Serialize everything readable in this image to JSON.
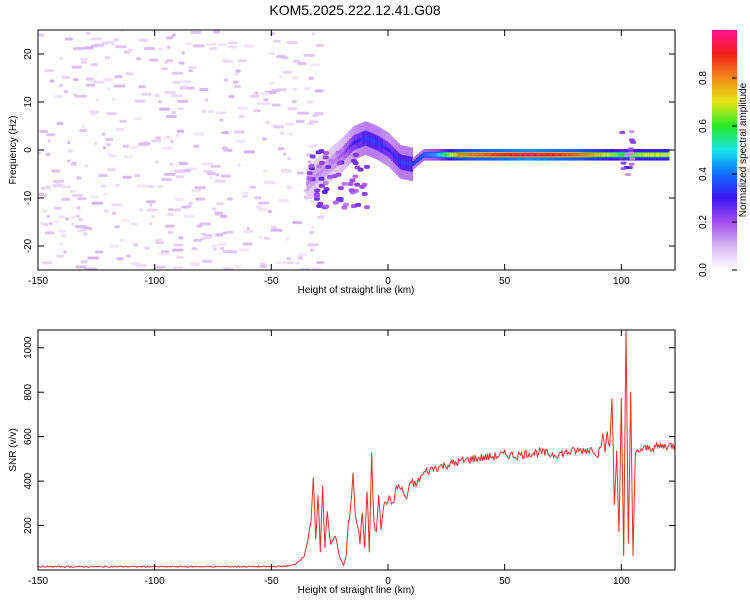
{
  "chart_data": [
    {
      "type": "heatmap",
      "title": "KOM5.2025.222.12.41.G08",
      "xlabel": "Height of straight line (km)",
      "ylabel": "Frequency (Hz)",
      "xlim": [
        -150,
        123
      ],
      "ylim": [
        -25,
        25
      ],
      "xticks": [
        -150,
        -100,
        -50,
        0,
        50,
        100
      ],
      "yticks": [
        -20,
        -10,
        0,
        10,
        20
      ],
      "colorbar": {
        "label": "Normalized spectral amplitude",
        "range": [
          0,
          1
        ],
        "ticks": [
          0.0,
          0.2,
          0.4,
          0.6,
          0.8
        ],
        "stops": [
          "#ffffff",
          "#d7b7f5",
          "#a24ef0",
          "#3a13f2",
          "#0e6cff",
          "#19e6e6",
          "#27e827",
          "#e6e619",
          "#f58a17",
          "#f01d1d",
          "#ff1493"
        ]
      },
      "ridge": {
        "x": [
          -35,
          -30,
          -25,
          -20,
          -15,
          -10,
          -5,
          0,
          5,
          10,
          15,
          20,
          30,
          40,
          50,
          60,
          70,
          80,
          90,
          100,
          110,
          120
        ],
        "freq": [
          -7,
          -5,
          -3,
          -1,
          1.5,
          2.5,
          1.5,
          0,
          -2.5,
          -3,
          -1,
          -1,
          -1,
          -1,
          -1,
          -1,
          -1,
          -1,
          -1,
          -1,
          -1,
          -1
        ],
        "amplitude": [
          0.15,
          0.15,
          0.15,
          0.2,
          0.3,
          0.35,
          0.35,
          0.3,
          0.35,
          0.35,
          0.4,
          0.45,
          0.8,
          0.85,
          0.9,
          0.95,
          0.9,
          0.85,
          0.75,
          0.6,
          0.7,
          0.7
        ]
      }
    },
    {
      "type": "line",
      "xlabel": "Height of straight line (km)",
      "ylabel": "SNR (v/v)",
      "xlim": [
        -150,
        123
      ],
      "ylim": [
        0,
        1080
      ],
      "xticks": [
        -150,
        -100,
        -50,
        0,
        50,
        100
      ],
      "yticks": [
        200,
        400,
        600,
        800,
        1000
      ],
      "color": "#e8302c",
      "series": [
        {
          "name": "SNR",
          "x": [
            -150,
            -100,
            -50,
            -42,
            -40,
            -36,
            -33,
            -32,
            -31,
            -30,
            -29,
            -28,
            -27,
            -26,
            -25,
            -24,
            -23,
            -22,
            -21,
            -20,
            -19,
            -18,
            -17,
            -16,
            -15,
            -14,
            -13,
            -12,
            -11,
            -10,
            -9,
            -8,
            -7,
            -6,
            -5,
            -4,
            -3,
            -2,
            -1,
            0,
            2,
            4,
            6,
            8,
            10,
            12,
            14,
            16,
            18,
            20,
            24,
            28,
            32,
            36,
            40,
            45,
            50,
            55,
            60,
            65,
            70,
            75,
            80,
            85,
            88,
            90,
            92,
            93,
            94,
            95,
            96,
            97,
            98,
            99,
            100,
            101,
            102,
            103,
            104,
            105,
            106,
            108,
            112,
            116,
            120,
            123
          ],
          "y": [
            15,
            15,
            15,
            18,
            25,
            60,
            200,
            420,
            120,
            350,
            80,
            380,
            100,
            280,
            150,
            110,
            150,
            130,
            70,
            40,
            20,
            60,
            200,
            300,
            420,
            250,
            180,
            130,
            270,
            100,
            360,
            80,
            510,
            200,
            180,
            350,
            200,
            280,
            300,
            320,
            300,
            380,
            360,
            320,
            400,
            380,
            420,
            440,
            450,
            460,
            470,
            480,
            490,
            500,
            505,
            510,
            520,
            515,
            525,
            530,
            520,
            525,
            535,
            540,
            545,
            520,
            600,
            540,
            620,
            540,
            780,
            300,
            540,
            160,
            760,
            60,
            1080,
            120,
            800,
            60,
            520,
            540,
            550,
            555,
            560,
            560
          ]
        }
      ]
    }
  ]
}
